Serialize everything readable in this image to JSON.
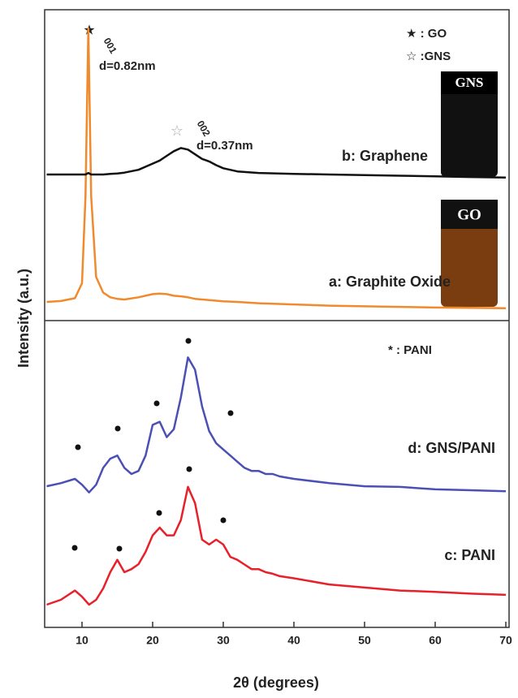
{
  "figure": {
    "ylabel": "Intensity (a.u.)",
    "xlabel": "2θ (degrees)"
  },
  "chart_data": [
    {
      "type": "line",
      "xlim": [
        5,
        70
      ],
      "ylim": [
        0,
        100
      ],
      "x": [
        5,
        7,
        9,
        10,
        10.5,
        10.9,
        11.3,
        12,
        13,
        14,
        15,
        16,
        18,
        20,
        21,
        22,
        23,
        24,
        25,
        26,
        27,
        28,
        29,
        30,
        32,
        35,
        40,
        45,
        50,
        55,
        60,
        65,
        70
      ],
      "series": [
        {
          "name": "a: Graphite Oxide",
          "color": "#f08a2c",
          "values": [
            6,
            6.3,
            7.2,
            12,
            40,
            94,
            40,
            14,
            9,
            7.5,
            7,
            6.8,
            7.5,
            8.5,
            8.7,
            8.5,
            8,
            7.8,
            7.5,
            7,
            6.8,
            6.6,
            6.4,
            6.2,
            6,
            5.6,
            5.2,
            4.8,
            4.6,
            4.4,
            4.2,
            4.1,
            4
          ]
        },
        {
          "name": "b: Graphene",
          "color": "#111111",
          "values": [
            47,
            47,
            47,
            47,
            47,
            47.5,
            47,
            47,
            47,
            47.2,
            47.3,
            47.6,
            48.5,
            50.5,
            51.5,
            53,
            54.5,
            55.5,
            55,
            53.5,
            52,
            51.2,
            50,
            49,
            48,
            47.5,
            47.2,
            47,
            46.8,
            46.6,
            46.4,
            46.2,
            46
          ]
        }
      ],
      "peak_labels": [
        "001",
        "d=0.82nm",
        "002",
        "d=0.37nm"
      ],
      "legend": [
        "★ : GO",
        "☆ :GNS"
      ],
      "vial_labels": [
        "GNS",
        "GO"
      ]
    },
    {
      "type": "line",
      "xlim": [
        5,
        70
      ],
      "ylim": [
        0,
        100
      ],
      "xticks": [
        10,
        20,
        30,
        40,
        50,
        60,
        70
      ],
      "x": [
        5,
        7,
        9,
        10,
        11,
        12,
        13,
        14,
        15,
        16,
        17,
        18,
        19,
        20,
        21,
        22,
        23,
        24,
        25,
        26,
        27,
        28,
        29,
        30,
        31,
        32,
        33,
        34,
        35,
        36,
        37,
        38,
        40,
        45,
        50,
        55,
        60,
        65,
        70
      ],
      "series": [
        {
          "name": "d: GNS/PANI",
          "color": "#4b50b4",
          "values": [
            46,
            47,
            48.4,
            46.5,
            44,
            46.5,
            52,
            55,
            56,
            52,
            50,
            51,
            56,
            66,
            67,
            62,
            64.6,
            75,
            88,
            84,
            72,
            64,
            60,
            58,
            56,
            54,
            52,
            51,
            51,
            50,
            50,
            49.2,
            48.4,
            47,
            46,
            45.8,
            45,
            44.7,
            44.4
          ]
        },
        {
          "name": "c: PANI",
          "color": "#e8202a",
          "values": [
            7.4,
            9,
            12,
            10,
            7.4,
            9,
            12.7,
            18,
            22,
            18,
            19,
            20.6,
            24.6,
            30,
            32.5,
            30,
            30,
            35,
            45.8,
            40.5,
            28.6,
            27,
            28.6,
            27,
            23,
            22,
            20.5,
            19,
            19,
            18,
            17.5,
            16.7,
            16,
            14,
            13,
            12,
            11.6,
            11,
            10.6
          ]
        }
      ],
      "legend": [
        "* : PANI"
      ]
    }
  ]
}
